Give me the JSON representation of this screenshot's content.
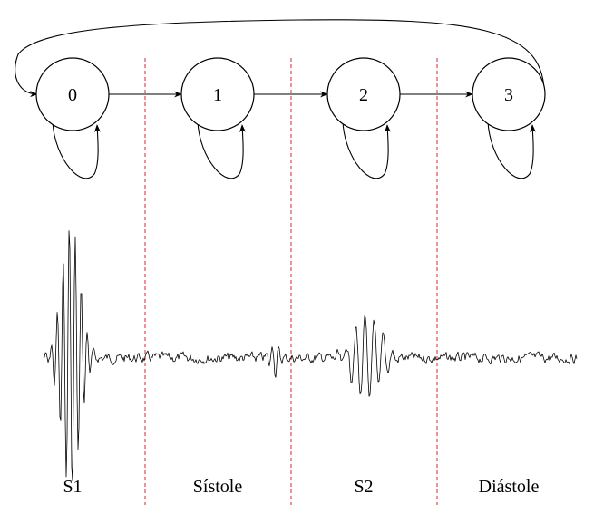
{
  "states": [
    {
      "id": "0",
      "label": "0"
    },
    {
      "id": "1",
      "label": "1"
    },
    {
      "id": "2",
      "label": "2"
    },
    {
      "id": "3",
      "label": "3"
    }
  ],
  "transitions": [
    {
      "from": "0",
      "to": "0"
    },
    {
      "from": "0",
      "to": "1"
    },
    {
      "from": "1",
      "to": "1"
    },
    {
      "from": "1",
      "to": "2"
    },
    {
      "from": "2",
      "to": "2"
    },
    {
      "from": "2",
      "to": "3"
    },
    {
      "from": "3",
      "to": "3"
    },
    {
      "from": "3",
      "to": "0"
    }
  ],
  "phases": [
    {
      "label": "S1"
    },
    {
      "label": "Sístole"
    },
    {
      "label": "S2"
    },
    {
      "label": "Diástole"
    }
  ],
  "colors": {
    "divider": "#e0262b",
    "stroke": "#000000",
    "background": "#ffffff"
  }
}
